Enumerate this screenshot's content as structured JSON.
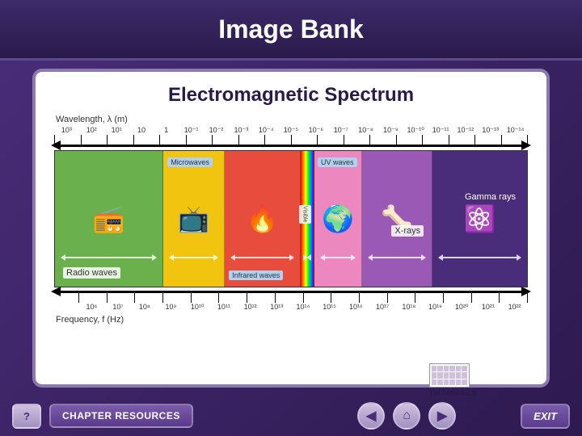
{
  "header": {
    "title": "Image Bank"
  },
  "subtitle": "Electromagnetic Spectrum",
  "wavelength": {
    "label": "Wavelength, λ (m)",
    "ticks": [
      "10³",
      "10²",
      "10¹",
      "10",
      "1",
      "10⁻¹",
      "10⁻²",
      "10⁻³",
      "10⁻⁴",
      "10⁻⁵",
      "10⁻⁶",
      "10⁻⁷",
      "10⁻⁸",
      "10⁻⁹",
      "10⁻¹⁰",
      "10⁻¹¹",
      "10⁻¹²",
      "10⁻¹³",
      "10⁻¹⁴"
    ]
  },
  "frequency": {
    "label": "Frequency, f (Hz)",
    "ticks": [
      "10⁶",
      "10⁷",
      "10⁸",
      "10⁹",
      "10¹⁰",
      "10¹¹",
      "10¹²",
      "10¹³",
      "10¹⁴",
      "10¹⁵",
      "10¹⁶",
      "10¹⁷",
      "10¹⁸",
      "10¹⁹",
      "10²⁰",
      "10²¹",
      "10²²"
    ]
  },
  "bands": [
    {
      "name": "Radio waves",
      "color": "#6ab04c",
      "width": 23,
      "icon": "📻",
      "labelPos": "bottom:10px;left:10px"
    },
    {
      "name": "Microwaves",
      "color": "#f1c40f",
      "width": 13,
      "icon": "📺",
      "labelPos": "top:8px;left:5px",
      "boxed": true
    },
    {
      "name": "Infrared waves",
      "color": "#e74c3c",
      "width": 16,
      "icon": "🔥",
      "labelPos": "bottom:8px;left:5px",
      "boxed": true
    },
    {
      "name": "Visible",
      "color": "linear-gradient(90deg,#ff0000,#ff8800,#ffff00,#00ff00,#0088ff,#4400ff)",
      "width": 3,
      "icon": "",
      "labelPos": "top:40%;left:-2px;writing-mode:vertical-rl;font-size:7px"
    },
    {
      "name": "UV waves",
      "color": "#ec87c0",
      "width": 10,
      "icon": "🌍",
      "labelPos": "top:8px;right:5px",
      "boxed": true
    },
    {
      "name": "X-rays",
      "color": "#9b59b6",
      "width": 15,
      "icon": "🦴",
      "labelPos": "top:55%;right:10px"
    },
    {
      "name": "Gamma rays",
      "color": "#4a2d7a",
      "width": 20,
      "icon": "⚛️",
      "labelPos": "top:30%;right:10px;color:#fff;background:transparent"
    }
  ],
  "footer": {
    "help": "?",
    "chapter": "CHAPTER RESOURCES",
    "back": "◀",
    "home": "⌂",
    "forward": "▶",
    "exit": "EXIT",
    "thumbnails": "THUMBNAILS"
  }
}
